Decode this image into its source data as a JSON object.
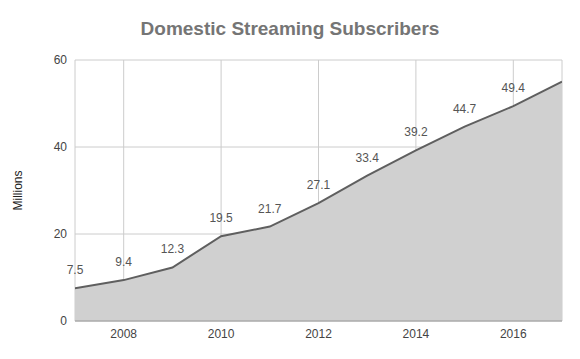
{
  "chart_data": {
    "type": "area",
    "title": "Domestic Streaming Subscribers",
    "y_label": "Millions",
    "x": [
      2007,
      2008,
      2009,
      2010,
      2011,
      2012,
      2013,
      2014,
      2015,
      2016,
      2017
    ],
    "values": [
      7.5,
      9.4,
      12.3,
      19.5,
      21.7,
      27.1,
      33.4,
      39.2,
      44.7,
      49.4,
      55
    ],
    "value_labels": [
      "7.5",
      "9.4",
      "12.3",
      "19.5",
      "21.7",
      "27.1",
      "33.4",
      "39.2",
      "44.7",
      "49.4",
      null
    ],
    "data_labels": true,
    "color": "#5f5f5f",
    "xlim": [
      2007,
      2017
    ],
    "xticks": [
      2008,
      2010,
      2012,
      2014,
      2016
    ],
    "ylim": [
      0,
      60
    ],
    "yticks": [
      0,
      20,
      40,
      60
    ],
    "grid": true
  }
}
